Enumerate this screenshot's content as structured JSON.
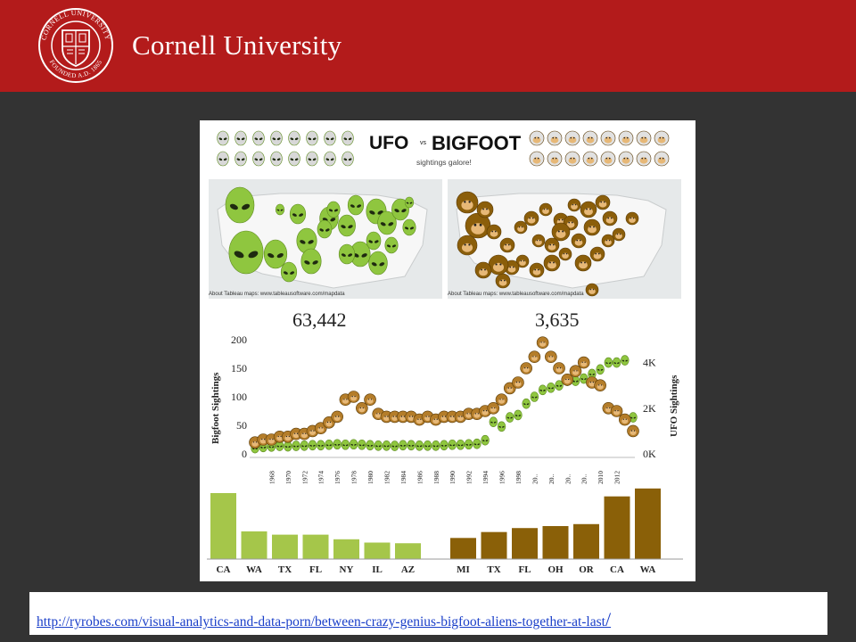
{
  "header": {
    "wordmark": "Cornell University",
    "seal": {
      "ring_top": "CORNELL UNIVERSITY",
      "ring_bottom": "FOUNDED A.D. 1865"
    },
    "colors": {
      "brand_red": "#b31b1b",
      "text": "#ffffff"
    }
  },
  "slide": {
    "background": "#333333"
  },
  "infographic": {
    "title_left": "UFO",
    "title_vs": "vs",
    "title_right": "BIGFOOT",
    "subtitle": "sightings galore!",
    "map_credit": "About Tableau maps: www.tableausoftware.com/mapdata",
    "ufo_total": "63,442",
    "bigfoot_total": "3,635",
    "colors": {
      "ufo_green": "#8fc63f",
      "bigfoot_brown": "#8b5e0a",
      "bar_green": "#a5c64a",
      "bar_brown": "#8a6008"
    },
    "chart_data": [
      {
        "type": "line",
        "ylabel": "Bigfoot Sightings",
        "y2label": "UFO Sightings",
        "ylim": [
          0,
          200
        ],
        "y_ticks": [
          "200",
          "150",
          "100",
          "50",
          "0"
        ],
        "y2_ticks": [
          "4K",
          "2K",
          "0K"
        ],
        "y2lim": [
          0,
          5000
        ],
        "x_ticks": [
          "1968",
          "1970",
          "1972",
          "1974",
          "1976",
          "1978",
          "1980",
          "1982",
          "1984",
          "1986",
          "1988",
          "1990",
          "1992",
          "1994",
          "1996",
          "1998",
          "20..",
          "20..",
          "20..",
          "20..",
          "2010",
          "2012"
        ],
        "series": [
          {
            "name": "Bigfoot",
            "x": [
              1966,
              1967,
              1968,
              1969,
              1970,
              1971,
              1972,
              1973,
              1974,
              1975,
              1976,
              1977,
              1978,
              1979,
              1980,
              1981,
              1982,
              1983,
              1984,
              1985,
              1986,
              1987,
              1988,
              1989,
              1990,
              1991,
              1992,
              1993,
              1994,
              1995,
              1996,
              1997,
              1998,
              1999,
              2000,
              2001,
              2002,
              2003,
              2004,
              2005,
              2006,
              2007,
              2008,
              2009,
              2010,
              2011,
              2012
            ],
            "values": [
              20,
              25,
              25,
              30,
              30,
              35,
              35,
              40,
              45,
              55,
              65,
              95,
              100,
              80,
              95,
              70,
              65,
              65,
              65,
              65,
              60,
              65,
              60,
              65,
              65,
              65,
              70,
              70,
              75,
              80,
              95,
              115,
              125,
              150,
              170,
              195,
              170,
              150,
              130,
              145,
              160,
              125,
              120,
              80,
              75,
              60,
              40
            ]
          },
          {
            "name": "UFO",
            "x": [
              1966,
              1967,
              1968,
              1969,
              1970,
              1971,
              1972,
              1973,
              1974,
              1975,
              1976,
              1977,
              1978,
              1979,
              1980,
              1981,
              1982,
              1983,
              1984,
              1985,
              1986,
              1987,
              1988,
              1989,
              1990,
              1991,
              1992,
              1993,
              1994,
              1995,
              1996,
              1997,
              1998,
              1999,
              2000,
              2001,
              2002,
              2003,
              2004,
              2005,
              2006,
              2007,
              2008,
              2009,
              2010,
              2011,
              2012
            ],
            "values": [
              250,
              300,
              320,
              350,
              330,
              350,
              360,
              380,
              380,
              400,
              420,
              400,
              420,
              400,
              380,
              360,
              360,
              350,
              380,
              380,
              360,
              360,
              360,
              380,
              400,
              400,
              420,
              440,
              600,
              1400,
              1200,
              1600,
              1700,
              2200,
              2500,
              2800,
              2900,
              3000,
              3200,
              3200,
              3300,
              3500,
              3700,
              4000,
              4000,
              4100,
              1600
            ]
          }
        ]
      },
      {
        "type": "bar",
        "title": "",
        "categories": [
          "CA",
          "WA",
          "TX",
          "FL",
          "NY",
          "IL",
          "AZ"
        ],
        "series": [
          {
            "values": [
              100,
              42,
              37,
              37,
              30,
              25,
              24
            ]
          }
        ]
      },
      {
        "type": "bar",
        "title": "",
        "categories": [
          "MI",
          "TX",
          "FL",
          "OH",
          "OR",
          "CA",
          "WA"
        ],
        "series": [
          {
            "values": [
              32,
              41,
              47,
              50,
              53,
              95,
              107
            ]
          }
        ]
      }
    ]
  },
  "footer": {
    "link_text": "http://ryrobes.com/visual-analytics-and-data-porn/between-crazy-genius-bigfoot-aliens-together-at-last",
    "link_slash": "/"
  }
}
